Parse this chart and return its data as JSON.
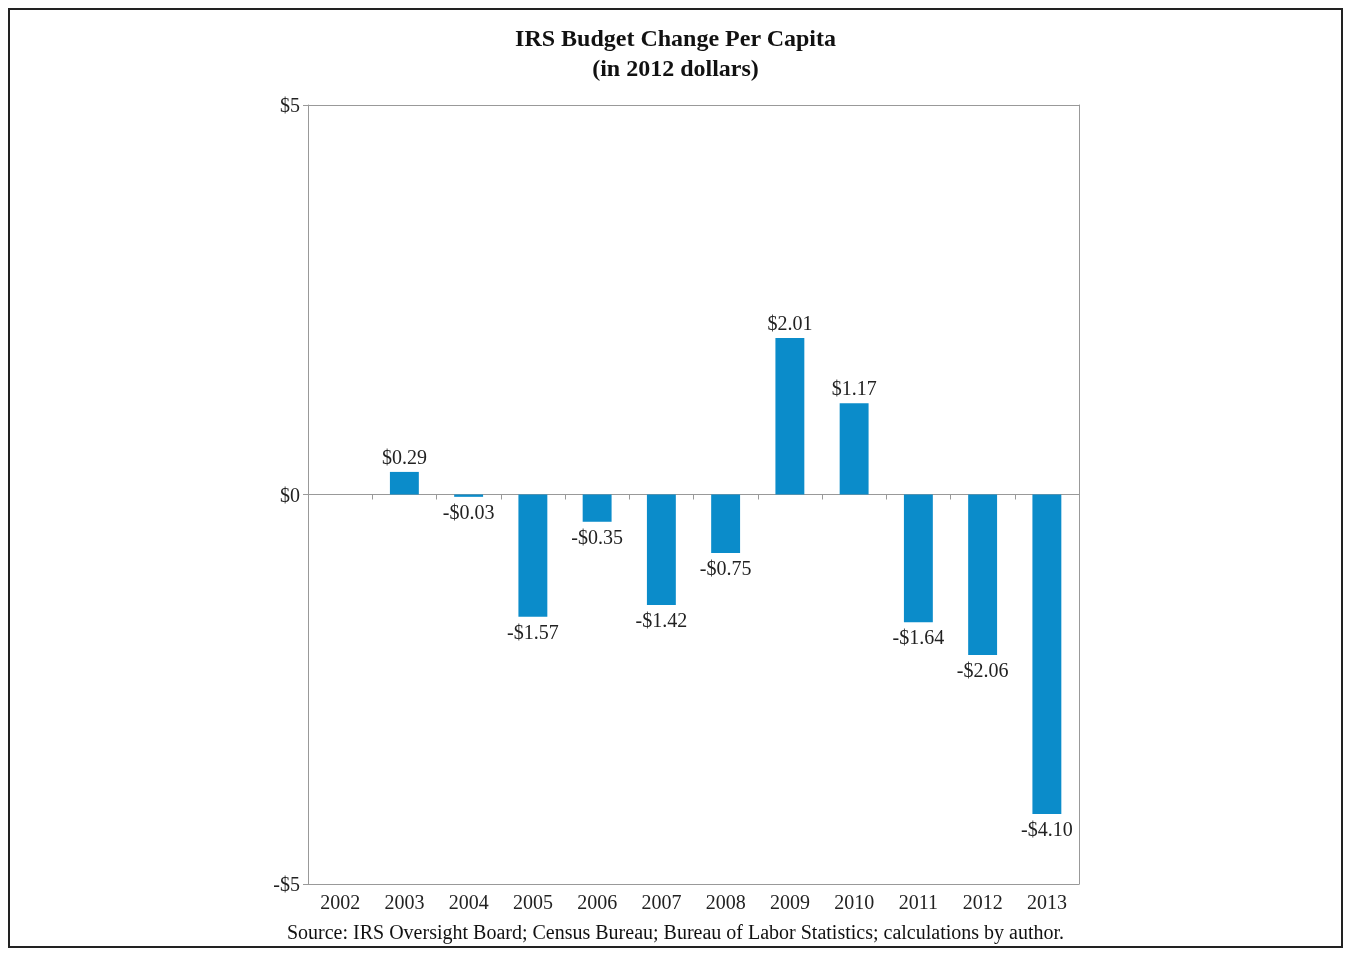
{
  "chart_data": {
    "type": "bar",
    "title": "IRS Budget Change Per Capita\n(in 2012 dollars)",
    "categories": [
      "2002",
      "2003",
      "2004",
      "2005",
      "2006",
      "2007",
      "2008",
      "2009",
      "2010",
      "2011",
      "2012",
      "2013"
    ],
    "values": [
      null,
      0.29,
      -0.03,
      -1.57,
      -0.35,
      -1.42,
      -0.75,
      2.01,
      1.17,
      -1.64,
      -2.06,
      -4.1
    ],
    "value_labels": [
      null,
      "$0.29",
      "-$0.03",
      "-$1.57",
      "-$0.35",
      "-$1.42",
      "-$0.75",
      "$2.01",
      "$1.17",
      "-$1.64",
      "-$2.06",
      "-$4.10"
    ],
    "color": "#0b8cca",
    "ylim": [
      -5,
      5
    ],
    "yticks": [
      {
        "value": -5,
        "label": "-$5"
      },
      {
        "value": 0,
        "label": "$0"
      },
      {
        "value": 5,
        "label": "$5"
      }
    ],
    "annotations": [
      "Source: IRS Oversight Board; Census Bureau; Bureau of Labor Statistics; calculations by author."
    ]
  }
}
